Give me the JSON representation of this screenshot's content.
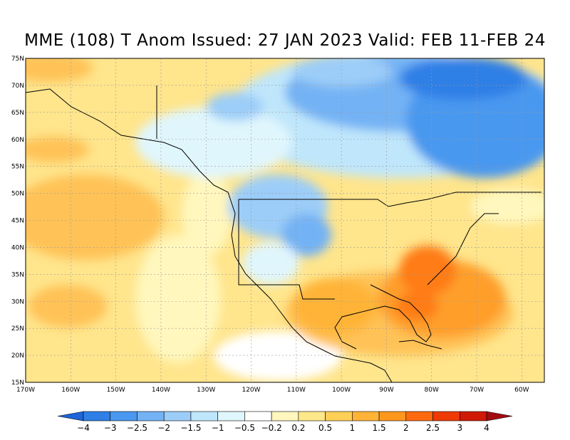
{
  "title": "MME (108) T Anom Issued: 27 JAN 2023 Valid: FEB 11-FEB 24",
  "lat_labels": [
    "75N",
    "70N",
    "65N",
    "60N",
    "55N",
    "50N",
    "45N",
    "40N",
    "35N",
    "30N",
    "25N",
    "20N",
    "15N"
  ],
  "lon_labels": [
    "170W",
    "160W",
    "150W",
    "140W",
    "130W",
    "120W",
    "110W",
    "100W",
    "90W",
    "80W",
    "70W",
    "60W"
  ],
  "colorbar": {
    "labels": [
      "-4",
      "-3",
      "-2.5",
      "-2",
      "-1.5",
      "-1",
      "-0.5",
      "-0.2",
      "0.2",
      "0.5",
      "1",
      "1.5",
      "2",
      "2.5",
      "3",
      "4"
    ],
    "colors": [
      "#1f64d8",
      "#2f7fe6",
      "#4a98ef",
      "#73b2f4",
      "#9ccdf8",
      "#bfe6fb",
      "#e0f6fd",
      "#ffffff",
      "#fff7bd",
      "#ffe88a",
      "#ffd056",
      "#ffb437",
      "#ff971c",
      "#ff6a0f",
      "#ef3a06",
      "#d01a06",
      "#a30c10"
    ]
  },
  "colors": {
    "grid": "#9a9a9a",
    "coast": "#000000"
  }
}
